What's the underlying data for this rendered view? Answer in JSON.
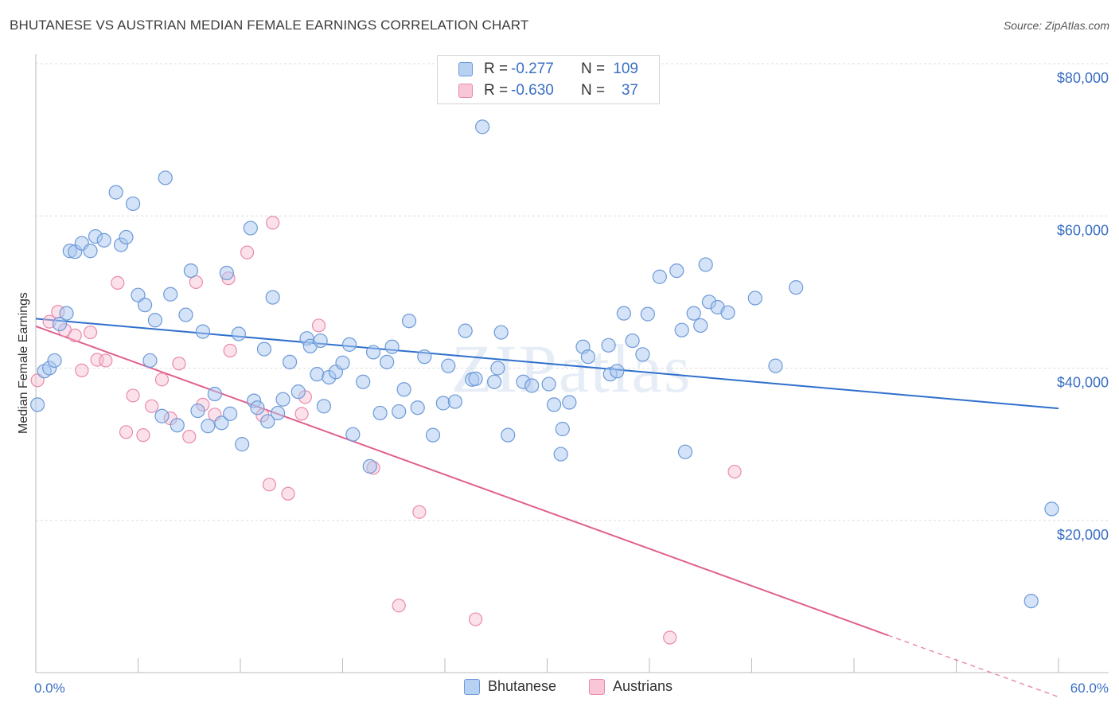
{
  "title": "BHUTANESE VS AUSTRIAN MEDIAN FEMALE EARNINGS CORRELATION CHART",
  "source": "Source: ZipAtlas.com",
  "watermark": "ZIPatlas",
  "colors": {
    "bhutanese_fill": "#a9c8ef",
    "bhutanese_stroke": "#6d9ad8",
    "bhutanese_line": "#2f6fcc",
    "austrians_fill": "#f6bcd0",
    "austrians_stroke": "#e98aab",
    "austrians_line": "#e0608f",
    "tick_text": "#3a6fc4",
    "grid": "#dddddd"
  },
  "legend": {
    "rows": [
      {
        "series": "Bhutanese",
        "r_label": "R =",
        "r_value": "-0.277",
        "n_label": "N =",
        "n_value": "109"
      },
      {
        "series": "Austrians",
        "r_label": "R =",
        "r_value": "-0.630",
        "n_label": "N =",
        "n_value": "37"
      }
    ]
  },
  "chart_data": {
    "type": "scatter",
    "title": "BHUTANESE VS AUSTRIAN MEDIAN FEMALE EARNINGS CORRELATION CHART",
    "xlabel": "",
    "ylabel": "Median Female Earnings",
    "xlim": [
      0,
      60
    ],
    "ylim": [
      0,
      80000
    ],
    "x_tick_labels": [
      "0.0%",
      "60.0%"
    ],
    "y_tick_values": [
      20000,
      40000,
      60000,
      80000
    ],
    "y_tick_labels": [
      "$20,000",
      "$40,000",
      "$60,000",
      "$80,000"
    ],
    "grid": true,
    "legend_position": "bottom",
    "series": [
      {
        "name": "Bhutanese",
        "trend": {
          "x0": 0,
          "y0": 46500,
          "x1": 60,
          "y1": 34700
        },
        "points": [
          [
            0.1,
            35200
          ],
          [
            0.5,
            39600
          ],
          [
            0.8,
            40000
          ],
          [
            1.1,
            41000
          ],
          [
            1.4,
            45800
          ],
          [
            1.8,
            47200
          ],
          [
            2.0,
            55400
          ],
          [
            2.3,
            55300
          ],
          [
            2.7,
            56400
          ],
          [
            3.2,
            55400
          ],
          [
            3.5,
            57300
          ],
          [
            4.0,
            56800
          ],
          [
            4.7,
            63100
          ],
          [
            5.0,
            56200
          ],
          [
            5.3,
            57200
          ],
          [
            5.7,
            61600
          ],
          [
            6.0,
            49600
          ],
          [
            6.4,
            48300
          ],
          [
            6.7,
            41000
          ],
          [
            7.0,
            46300
          ],
          [
            7.4,
            33700
          ],
          [
            7.6,
            65000
          ],
          [
            7.9,
            49700
          ],
          [
            8.3,
            32500
          ],
          [
            8.8,
            47000
          ],
          [
            9.1,
            52800
          ],
          [
            9.5,
            34400
          ],
          [
            9.8,
            44800
          ],
          [
            10.1,
            32400
          ],
          [
            10.5,
            36600
          ],
          [
            10.9,
            32800
          ],
          [
            11.2,
            52500
          ],
          [
            11.4,
            34000
          ],
          [
            11.9,
            44500
          ],
          [
            12.1,
            30000
          ],
          [
            12.6,
            58400
          ],
          [
            12.8,
            35700
          ],
          [
            13.0,
            34800
          ],
          [
            13.4,
            42500
          ],
          [
            13.6,
            33000
          ],
          [
            13.9,
            49300
          ],
          [
            14.2,
            34100
          ],
          [
            14.5,
            35900
          ],
          [
            14.9,
            40800
          ],
          [
            15.4,
            36900
          ],
          [
            15.9,
            43900
          ],
          [
            16.1,
            42900
          ],
          [
            16.5,
            39200
          ],
          [
            16.9,
            35000
          ],
          [
            17.2,
            38800
          ],
          [
            17.6,
            39500
          ],
          [
            18.0,
            40700
          ],
          [
            18.4,
            43100
          ],
          [
            18.6,
            31300
          ],
          [
            19.2,
            38200
          ],
          [
            19.6,
            27100
          ],
          [
            19.8,
            42100
          ],
          [
            20.2,
            34100
          ],
          [
            20.6,
            40800
          ],
          [
            20.9,
            42800
          ],
          [
            21.3,
            34300
          ],
          [
            21.6,
            37200
          ],
          [
            21.9,
            46200
          ],
          [
            22.4,
            34800
          ],
          [
            22.8,
            41500
          ],
          [
            23.3,
            31200
          ],
          [
            23.9,
            35400
          ],
          [
            24.2,
            40300
          ],
          [
            24.6,
            35600
          ],
          [
            25.2,
            44900
          ],
          [
            25.6,
            38500
          ],
          [
            26.2,
            71700
          ],
          [
            26.9,
            38200
          ],
          [
            27.1,
            40000
          ],
          [
            27.3,
            44700
          ],
          [
            27.7,
            31200
          ],
          [
            28.6,
            38200
          ],
          [
            29.1,
            37700
          ],
          [
            30.1,
            37900
          ],
          [
            30.4,
            35200
          ],
          [
            30.8,
            28700
          ],
          [
            30.9,
            32000
          ],
          [
            31.3,
            35500
          ],
          [
            32.1,
            42800
          ],
          [
            32.4,
            41500
          ],
          [
            33.6,
            43000
          ],
          [
            33.7,
            39200
          ],
          [
            34.1,
            39600
          ],
          [
            34.5,
            47200
          ],
          [
            35.0,
            43600
          ],
          [
            35.6,
            41800
          ],
          [
            35.9,
            47100
          ],
          [
            36.6,
            52000
          ],
          [
            37.6,
            52800
          ],
          [
            37.9,
            45000
          ],
          [
            38.1,
            29000
          ],
          [
            38.6,
            47200
          ],
          [
            39.0,
            45600
          ],
          [
            39.3,
            53600
          ],
          [
            39.5,
            48700
          ],
          [
            40.0,
            48000
          ],
          [
            40.6,
            47300
          ],
          [
            42.2,
            49200
          ],
          [
            43.4,
            40300
          ],
          [
            44.6,
            50600
          ],
          [
            59.6,
            21500
          ],
          [
            58.4,
            9400
          ],
          [
            25.8,
            38600
          ],
          [
            16.7,
            43600
          ]
        ]
      },
      {
        "name": "Austrians",
        "trend": {
          "x0": 0,
          "y0": 45500,
          "x1": 50,
          "y1": 4900,
          "dash_to_x": 60,
          "dash_to_y": -3200
        },
        "points": [
          [
            0.1,
            38400
          ],
          [
            0.8,
            46100
          ],
          [
            1.3,
            47400
          ],
          [
            1.7,
            45000
          ],
          [
            2.3,
            44300
          ],
          [
            2.7,
            39700
          ],
          [
            3.2,
            44700
          ],
          [
            3.6,
            41100
          ],
          [
            4.1,
            41000
          ],
          [
            4.8,
            51200
          ],
          [
            5.3,
            31600
          ],
          [
            5.7,
            36400
          ],
          [
            6.3,
            31200
          ],
          [
            6.8,
            35000
          ],
          [
            7.4,
            38500
          ],
          [
            7.9,
            33400
          ],
          [
            8.4,
            40600
          ],
          [
            9.0,
            31000
          ],
          [
            9.4,
            51300
          ],
          [
            9.8,
            35200
          ],
          [
            10.5,
            33900
          ],
          [
            11.3,
            51800
          ],
          [
            11.4,
            42300
          ],
          [
            12.4,
            55200
          ],
          [
            13.3,
            33800
          ],
          [
            13.7,
            24700
          ],
          [
            13.9,
            59100
          ],
          [
            14.8,
            23500
          ],
          [
            15.6,
            34000
          ],
          [
            15.8,
            36200
          ],
          [
            16.6,
            45600
          ],
          [
            19.8,
            26900
          ],
          [
            22.5,
            21100
          ],
          [
            21.3,
            8800
          ],
          [
            25.8,
            7000
          ],
          [
            37.2,
            4600
          ],
          [
            41.0,
            26400
          ]
        ]
      }
    ]
  }
}
